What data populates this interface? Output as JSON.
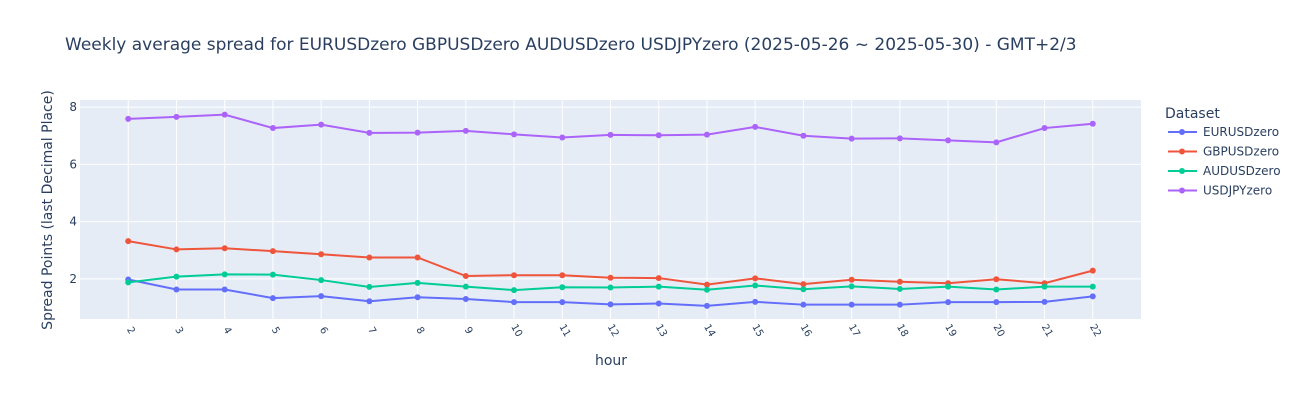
{
  "chart_data": {
    "type": "line",
    "title": "Weekly average spread for  EURUSDzero GBPUSDzero AUDUSDzero USDJPYzero (2025-05-26 ~ 2025-05-30) - GMT+2/3",
    "xlabel": "hour",
    "ylabel": "Spread Points (last Decimal Place)",
    "legend_title": "Dataset",
    "legend_position": "right",
    "grid": true,
    "x": [
      2,
      3,
      4,
      5,
      6,
      7,
      8,
      9,
      10,
      11,
      12,
      13,
      14,
      15,
      16,
      17,
      18,
      19,
      20,
      21,
      22
    ],
    "x_tick_labels": [
      "2",
      "3",
      "4",
      "5",
      "6",
      "7",
      "8",
      "9",
      "10",
      "11",
      "12",
      "13",
      "14",
      "15",
      "16",
      "17",
      "18",
      "19",
      "20",
      "21",
      "22"
    ],
    "xlim": [
      1,
      23
    ],
    "ylim": [
      0.6,
      8.25
    ],
    "y_ticks": [
      2,
      4,
      6,
      8
    ],
    "y_tick_labels": [
      "2",
      "4",
      "6",
      "8"
    ],
    "series": [
      {
        "name": "EURUSDzero",
        "color": "#636efa",
        "values": [
          1.98,
          1.63,
          1.63,
          1.33,
          1.4,
          1.22,
          1.36,
          1.3,
          1.19,
          1.19,
          1.11,
          1.14,
          1.06,
          1.2,
          1.1,
          1.1,
          1.1,
          1.19,
          1.19,
          1.2,
          1.39
        ]
      },
      {
        "name": "GBPUSDzero",
        "color": "#ef553b",
        "values": [
          3.32,
          3.03,
          3.07,
          2.97,
          2.86,
          2.75,
          2.75,
          2.1,
          2.13,
          2.13,
          2.04,
          2.03,
          1.8,
          2.02,
          1.82,
          1.97,
          1.9,
          1.85,
          1.99,
          1.85,
          2.29
        ]
      },
      {
        "name": "AUDUSDzero",
        "color": "#00cc96",
        "values": [
          1.88,
          2.08,
          2.16,
          2.15,
          1.96,
          1.72,
          1.86,
          1.73,
          1.61,
          1.71,
          1.7,
          1.73,
          1.62,
          1.77,
          1.64,
          1.74,
          1.65,
          1.73,
          1.63,
          1.73,
          1.73
        ]
      },
      {
        "name": "USDJPYzero",
        "color": "#ab63fa",
        "values": [
          7.59,
          7.66,
          7.74,
          7.27,
          7.39,
          7.1,
          7.11,
          7.17,
          7.05,
          6.94,
          7.03,
          7.02,
          7.04,
          7.31,
          7.0,
          6.9,
          6.91,
          6.84,
          6.77,
          7.27,
          7.42
        ]
      }
    ]
  }
}
